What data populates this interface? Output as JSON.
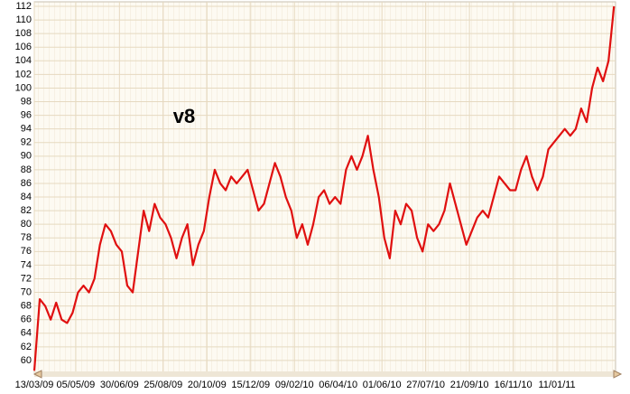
{
  "chart_data": {
    "type": "line",
    "annotation": "v8",
    "x": [
      "13/03/09",
      "20/03/09",
      "27/03/09",
      "03/04/09",
      "10/04/09",
      "17/04/09",
      "24/04/09",
      "01/05/09",
      "08/05/09",
      "15/05/09",
      "22/05/09",
      "29/05/09",
      "05/06/09",
      "12/06/09",
      "19/06/09",
      "26/06/09",
      "03/07/09",
      "10/07/09",
      "17/07/09",
      "24/07/09",
      "31/07/09",
      "07/08/09",
      "14/08/09",
      "21/08/09",
      "28/08/09",
      "04/09/09",
      "11/09/09",
      "18/09/09",
      "25/09/09",
      "02/10/09",
      "09/10/09",
      "16/10/09",
      "23/10/09",
      "30/10/09",
      "06/11/09",
      "13/11/09",
      "20/11/09",
      "27/11/09",
      "04/12/09",
      "11/12/09",
      "18/12/09",
      "25/12/09",
      "01/01/10",
      "08/01/10",
      "15/01/10",
      "22/01/10",
      "29/01/10",
      "05/02/10",
      "12/02/10",
      "19/02/10",
      "26/02/10",
      "05/03/10",
      "12/03/10",
      "19/03/10",
      "26/03/10",
      "02/04/10",
      "09/04/10",
      "16/04/10",
      "23/04/10",
      "30/04/10",
      "07/05/10",
      "14/05/10",
      "21/05/10",
      "28/05/10",
      "04/06/10",
      "11/06/10",
      "18/06/10",
      "25/06/10",
      "02/07/10",
      "09/07/10",
      "16/07/10",
      "23/07/10",
      "30/07/10",
      "06/08/10",
      "13/08/10",
      "20/08/10",
      "27/08/10",
      "03/09/10",
      "10/09/10",
      "17/09/10",
      "24/09/10",
      "01/10/10",
      "08/10/10",
      "15/10/10",
      "22/10/10",
      "29/10/10",
      "05/11/10",
      "12/11/10",
      "19/11/10",
      "26/11/10",
      "03/12/10",
      "10/12/10",
      "17/12/10",
      "24/12/10",
      "31/12/10",
      "07/01/11",
      "14/01/11",
      "21/01/11",
      "28/01/11",
      "04/02/11",
      "11/02/11",
      "18/02/11",
      "25/02/11",
      "04/03/11",
      "11/03/11",
      "18/03/11",
      "25/03/11"
    ],
    "series": [
      {
        "color": "#e01010",
        "values": [
          58.5,
          69,
          68,
          66,
          68.5,
          66,
          65.5,
          67,
          70,
          71,
          70,
          72,
          77,
          80,
          79,
          77,
          76,
          71,
          70,
          76,
          82,
          79,
          83,
          81,
          80,
          78,
          75,
          78,
          80,
          74,
          77,
          79,
          84,
          88,
          86,
          85,
          87,
          86,
          87,
          88,
          85,
          82,
          83,
          86,
          89,
          87,
          84,
          82,
          78,
          80,
          77,
          80,
          84,
          85,
          83,
          84,
          83,
          88,
          90,
          88,
          90,
          93,
          88,
          84,
          78,
          75,
          82,
          80,
          83,
          82,
          78,
          76,
          80,
          79,
          80,
          82,
          86,
          83,
          80,
          77,
          79,
          81,
          82,
          81,
          84,
          87,
          86,
          85,
          85,
          88,
          90,
          87,
          85,
          87,
          91,
          92,
          93,
          94,
          93,
          94,
          97,
          95,
          100,
          103,
          101,
          104,
          112
        ]
      }
    ],
    "xlim": [
      "13/03/09",
      "27/03/11"
    ],
    "xticks": [
      "13/03/09",
      "05/05/09",
      "30/06/09",
      "25/08/09",
      "20/10/09",
      "15/12/09",
      "09/02/10",
      "06/04/10",
      "01/06/10",
      "27/07/10",
      "21/09/10",
      "16/11/10",
      "11/01/11"
    ],
    "ylim": [
      58,
      112
    ],
    "yticks": [
      60,
      62,
      64,
      66,
      68,
      70,
      72,
      74,
      76,
      78,
      80,
      82,
      84,
      86,
      88,
      90,
      92,
      94,
      96,
      98,
      100,
      102,
      104,
      106,
      108,
      110,
      112
    ],
    "grid": true
  }
}
